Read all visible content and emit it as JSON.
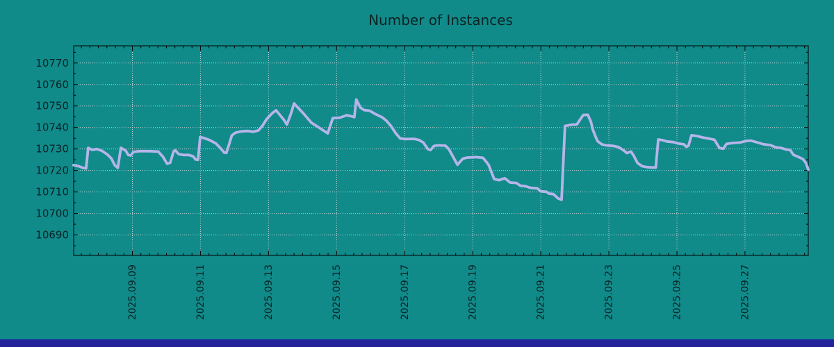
{
  "chart_data": {
    "type": "line",
    "title": "Number of Instances",
    "xlabel": "",
    "ylabel": "",
    "grid": true,
    "legend": false,
    "x_axis": {
      "unit": "date",
      "tick_labels": [
        "2025.09.09",
        "2025.09.11",
        "2025.09.13",
        "2025.09.15",
        "2025.09.17",
        "2025.09.19",
        "2025.09.21",
        "2025.09.23",
        "2025.09.25",
        "2025.09.27"
      ],
      "tick_days": [
        2,
        4,
        6,
        8,
        10,
        12,
        14,
        16,
        18,
        20
      ],
      "minor_tick_interval_days": 0.25,
      "xlim_days": [
        0.274,
        21.86
      ]
    },
    "y_axis": {
      "ticks": [
        10690,
        10700,
        10710,
        10720,
        10730,
        10740,
        10750,
        10760,
        10770
      ],
      "minor_tick_interval": 5,
      "ylim": [
        10680.5,
        10778
      ]
    },
    "series": [
      {
        "name": "Number of Instances",
        "color": "#b5b5e8",
        "points_day_value": [
          [
            0.27,
            10722.5
          ],
          [
            0.42,
            10722.0
          ],
          [
            0.55,
            10721.2
          ],
          [
            0.64,
            10721.0
          ],
          [
            0.7,
            10730.5
          ],
          [
            0.82,
            10729.6
          ],
          [
            0.95,
            10730.0
          ],
          [
            1.1,
            10729.2
          ],
          [
            1.26,
            10727.5
          ],
          [
            1.38,
            10725.6
          ],
          [
            1.48,
            10722.5
          ],
          [
            1.57,
            10721.2
          ],
          [
            1.66,
            10730.5
          ],
          [
            1.8,
            10729.3
          ],
          [
            1.88,
            10727.2
          ],
          [
            1.95,
            10727.0
          ],
          [
            2.03,
            10728.6
          ],
          [
            2.2,
            10729.0
          ],
          [
            2.5,
            10729.0
          ],
          [
            2.76,
            10728.8
          ],
          [
            2.9,
            10726.3
          ],
          [
            3.02,
            10723.1
          ],
          [
            3.11,
            10723.6
          ],
          [
            3.21,
            10728.9
          ],
          [
            3.26,
            10729.4
          ],
          [
            3.36,
            10727.6
          ],
          [
            3.5,
            10727.2
          ],
          [
            3.66,
            10727.2
          ],
          [
            3.78,
            10726.6
          ],
          [
            3.86,
            10725.1
          ],
          [
            3.93,
            10725.0
          ],
          [
            3.99,
            10735.5
          ],
          [
            4.08,
            10735.2
          ],
          [
            4.25,
            10734.3
          ],
          [
            4.45,
            10732.6
          ],
          [
            4.58,
            10730.5
          ],
          [
            4.7,
            10728.3
          ],
          [
            4.76,
            10728.2
          ],
          [
            4.85,
            10732.6
          ],
          [
            4.92,
            10736.3
          ],
          [
            5.03,
            10737.6
          ],
          [
            5.2,
            10738.2
          ],
          [
            5.4,
            10738.4
          ],
          [
            5.55,
            10738.0
          ],
          [
            5.7,
            10738.6
          ],
          [
            5.82,
            10740.8
          ],
          [
            5.95,
            10744.0
          ],
          [
            6.12,
            10746.8
          ],
          [
            6.22,
            10748.0
          ],
          [
            6.44,
            10743.8
          ],
          [
            6.54,
            10741.4
          ],
          [
            6.66,
            10746.5
          ],
          [
            6.75,
            10751.2
          ],
          [
            6.83,
            10749.8
          ],
          [
            7.05,
            10746.1
          ],
          [
            7.26,
            10742.2
          ],
          [
            7.42,
            10740.6
          ],
          [
            7.62,
            10738.5
          ],
          [
            7.74,
            10737.3
          ],
          [
            7.89,
            10744.4
          ],
          [
            8.1,
            10744.6
          ],
          [
            8.3,
            10745.7
          ],
          [
            8.44,
            10745.2
          ],
          [
            8.52,
            10744.8
          ],
          [
            8.58,
            10753.0
          ],
          [
            8.7,
            10749.2
          ],
          [
            8.81,
            10748.1
          ],
          [
            8.97,
            10747.8
          ],
          [
            9.12,
            10746.4
          ],
          [
            9.33,
            10744.8
          ],
          [
            9.46,
            10743.2
          ],
          [
            9.6,
            10740.6
          ],
          [
            9.74,
            10737.3
          ],
          [
            9.87,
            10734.9
          ],
          [
            10.0,
            10734.6
          ],
          [
            10.28,
            10734.7
          ],
          [
            10.42,
            10734.2
          ],
          [
            10.55,
            10733.0
          ],
          [
            10.68,
            10730.0
          ],
          [
            10.76,
            10729.5
          ],
          [
            10.86,
            10731.4
          ],
          [
            11.0,
            10731.7
          ],
          [
            11.2,
            10731.5
          ],
          [
            11.3,
            10729.9
          ],
          [
            11.55,
            10722.7
          ],
          [
            11.71,
            10725.5
          ],
          [
            11.83,
            10726.0
          ],
          [
            12.1,
            10726.2
          ],
          [
            12.3,
            10725.9
          ],
          [
            12.4,
            10724.0
          ],
          [
            12.47,
            10722.5
          ],
          [
            12.63,
            10716.0
          ],
          [
            12.78,
            10715.5
          ],
          [
            12.94,
            10716.4
          ],
          [
            13.1,
            10714.4
          ],
          [
            13.28,
            10714.2
          ],
          [
            13.4,
            10712.9
          ],
          [
            13.55,
            10712.7
          ],
          [
            13.7,
            10711.9
          ],
          [
            13.9,
            10711.7
          ],
          [
            14.0,
            10710.3
          ],
          [
            14.16,
            10710.1
          ],
          [
            14.25,
            10709.2
          ],
          [
            14.37,
            10709.0
          ],
          [
            14.51,
            10707.0
          ],
          [
            14.61,
            10706.4
          ],
          [
            14.71,
            10740.7
          ],
          [
            14.9,
            10741.3
          ],
          [
            15.06,
            10741.4
          ],
          [
            15.15,
            10743.6
          ],
          [
            15.25,
            10745.8
          ],
          [
            15.38,
            10745.9
          ],
          [
            15.47,
            10742.8
          ],
          [
            15.53,
            10739.0
          ],
          [
            15.61,
            10735.7
          ],
          [
            15.67,
            10733.6
          ],
          [
            15.8,
            10732.1
          ],
          [
            15.95,
            10731.6
          ],
          [
            16.14,
            10731.4
          ],
          [
            16.28,
            10730.9
          ],
          [
            16.43,
            10729.4
          ],
          [
            16.53,
            10728.1
          ],
          [
            16.65,
            10728.8
          ],
          [
            16.73,
            10726.9
          ],
          [
            16.84,
            10723.5
          ],
          [
            16.98,
            10722.0
          ],
          [
            17.1,
            10721.6
          ],
          [
            17.25,
            10721.4
          ],
          [
            17.38,
            10721.4
          ],
          [
            17.45,
            10734.4
          ],
          [
            17.56,
            10734.2
          ],
          [
            17.7,
            10733.5
          ],
          [
            17.9,
            10733.2
          ],
          [
            18.05,
            10732.5
          ],
          [
            18.2,
            10732.2
          ],
          [
            18.28,
            10731.0
          ],
          [
            18.34,
            10731.5
          ],
          [
            18.43,
            10736.4
          ],
          [
            18.6,
            10736.0
          ],
          [
            18.75,
            10735.4
          ],
          [
            18.95,
            10734.8
          ],
          [
            19.1,
            10734.3
          ],
          [
            19.25,
            10730.5
          ],
          [
            19.36,
            10730.1
          ],
          [
            19.46,
            10732.4
          ],
          [
            19.65,
            10732.8
          ],
          [
            19.85,
            10733.0
          ],
          [
            20.03,
            10733.7
          ],
          [
            20.17,
            10733.9
          ],
          [
            20.35,
            10733.1
          ],
          [
            20.55,
            10732.2
          ],
          [
            20.75,
            10731.8
          ],
          [
            20.9,
            10730.8
          ],
          [
            21.05,
            10730.5
          ],
          [
            21.2,
            10729.8
          ],
          [
            21.33,
            10729.5
          ],
          [
            21.42,
            10727.3
          ],
          [
            21.58,
            10726.2
          ],
          [
            21.7,
            10725.3
          ],
          [
            21.79,
            10723.5
          ],
          [
            21.86,
            10720.4
          ]
        ]
      }
    ]
  },
  "colors": {
    "background": "#118a8a",
    "line": "#b5b5e8",
    "grid": "#c9d5d5",
    "text": "#0a2323",
    "plot_border": "#000000",
    "bottom_bar": "#22229a"
  }
}
